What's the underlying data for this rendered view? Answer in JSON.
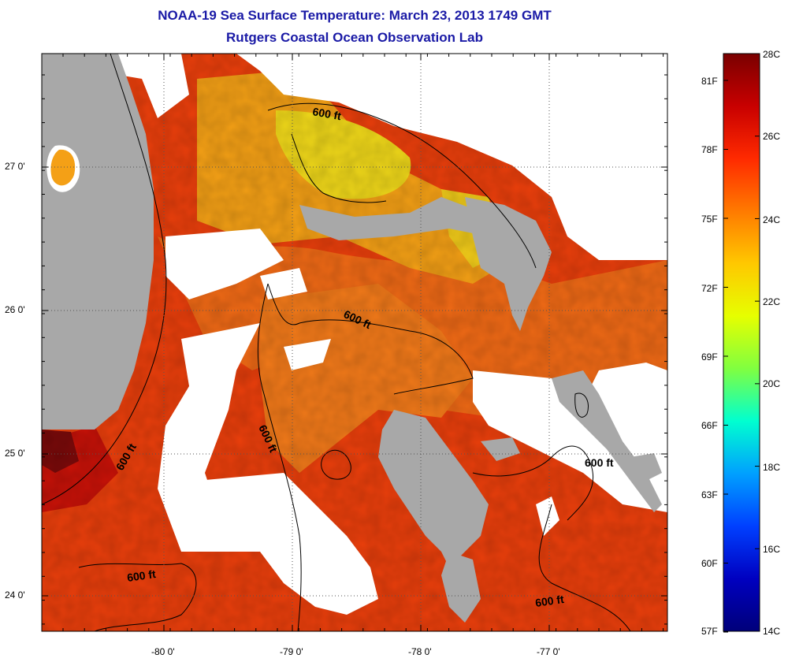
{
  "title": {
    "line1": "NOAA-19 Sea Surface Temperature:  March 23, 2013 1749 GMT",
    "line2": "Rutgers Coastal Ocean Observation Lab"
  },
  "axes": {
    "lon_ticks": [
      "-80 0'",
      "-79 0'",
      "-78 0'",
      "-77 0'"
    ],
    "lat_ticks": [
      "27 0'",
      "26 0'",
      "25 0'",
      "24 0'"
    ]
  },
  "contour_labels": [
    "600 ft",
    "600 ft",
    "600 ft",
    "600 ft",
    "600 ft",
    "600 ft"
  ],
  "colorbar": {
    "celsius_labels": [
      "28C",
      "26C",
      "24C",
      "22C",
      "20C",
      "18C",
      "16C",
      "14C"
    ],
    "fahrenheit_labels": [
      "81F",
      "78F",
      "75F",
      "72F",
      "69F",
      "66F",
      "63F",
      "60F",
      "57F"
    ],
    "stops": [
      "#7a0000",
      "#c80000",
      "#ff2a00",
      "#ff7a00",
      "#ffc800",
      "#e6ff00",
      "#80ff40",
      "#00ffd0",
      "#00a0ff",
      "#0040ff",
      "#0000c0",
      "#00007a"
    ]
  },
  "colors": {
    "land": "#a8a8a8",
    "cloud": "#ffffff",
    "sea_warm": "#e8380a",
    "sea_mid": "#f06a12",
    "sea_cool": "#f4d21a",
    "title": "#1a1aa6"
  }
}
